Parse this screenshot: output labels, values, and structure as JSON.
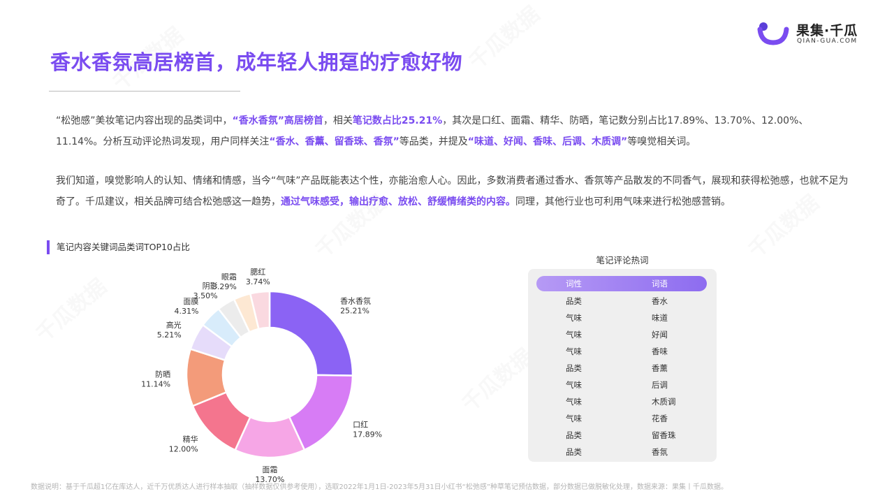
{
  "brand": {
    "name": "果集·千瓜",
    "sub": "QIAN-GUA.COM",
    "watermark": "千瓜数据"
  },
  "title": "香水香氛高居榜首，成年轻人拥趸的疗愈好物",
  "para1": {
    "t1": "“松弛感”美妆笔记内容出现的品类词中，",
    "h1": "“香水香氛”高居榜首",
    "t2": "，相关",
    "h2": "笔记数占比25.21%",
    "t3": "，其次是口红、面霜、精华、防晒，笔记数分别占比17.89%、13.70%、12.00%、11.14%。分析互动评论热词发现，用户同样关注",
    "h3": "“香水、香薰、留香珠、香氛”",
    "t4": "等品类，并提及",
    "h4": "“味道、好闻、香味、后调、木质调”",
    "t5": "等嗅觉相关词。"
  },
  "para2": {
    "t1": "我们知道，嗅觉影响人的认知、情绪和情感，当今“气味”产品既能表达个性，亦能治愈人心。因此，多数消费者通过香水、香氛等产品散发的不同香气，展现和获得松弛感，也就不足为奇了。千瓜建议，相关品牌可结合松弛感这一趋势，",
    "h1": "通过气味感受，输出疗愈、放松、舒缓情绪类的内容。",
    "t2": "同理，其他行业也可利用气味来进行松弛感营销。"
  },
  "section_title": "笔记内容关键词品类词TOP10占比",
  "chart_data": {
    "type": "pie",
    "title": "笔记内容关键词品类词TOP10占比",
    "donut": true,
    "categories": [
      "香水香氛",
      "口红",
      "面霜",
      "精华",
      "防晒",
      "高光",
      "面膜",
      "阴影",
      "眼霜",
      "腮红"
    ],
    "values": [
      25.21,
      17.89,
      13.7,
      12.0,
      11.14,
      5.21,
      4.31,
      3.5,
      3.29,
      3.74
    ],
    "value_labels": [
      "25.21%",
      "17.89%",
      "13.70%",
      "12.00%",
      "11.14%",
      "5.21%",
      "4.31%",
      "3.50%",
      "3.29%",
      "3.74%"
    ],
    "colors": [
      "#8b63f4",
      "#d77cf5",
      "#f6a6e6",
      "#f4758e",
      "#f39b7a",
      "#e6dcfa",
      "#d8ecfb",
      "#ececec",
      "#fde8d3",
      "#fad9e0"
    ]
  },
  "table": {
    "title": "笔记评论热词",
    "headers": [
      "词性",
      "词语"
    ],
    "rows": [
      [
        "品类",
        "香水"
      ],
      [
        "气味",
        "味道"
      ],
      [
        "气味",
        "好闻"
      ],
      [
        "气味",
        "香味"
      ],
      [
        "品类",
        "香薰"
      ],
      [
        "气味",
        "后调"
      ],
      [
        "气味",
        "木质调"
      ],
      [
        "气味",
        "花香"
      ],
      [
        "品类",
        "留香珠"
      ],
      [
        "品类",
        "香氛"
      ]
    ]
  },
  "footer": "数据说明：基于千瓜超1亿在库达人，近千万优质达人进行样本抽取（抽样数据仅供参考使用），选取2022年1月1日-2023年5月31日小红书“松弛感”种草笔记预估数据，部分数据已做脱敏化处理，数据来源：果集丨千瓜数据。"
}
